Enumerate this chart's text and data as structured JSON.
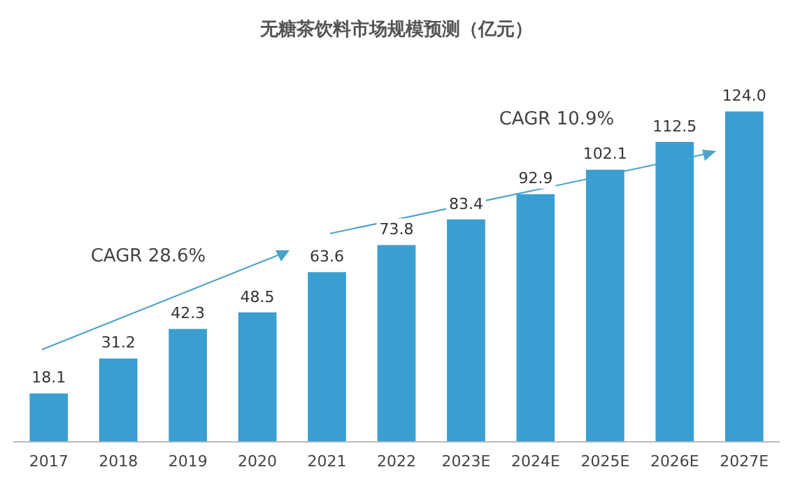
{
  "chart_data": {
    "type": "bar",
    "title": "无糖茶饮料市场规模预测（亿元）",
    "categories": [
      "2017",
      "2018",
      "2019",
      "2020",
      "2021",
      "2022",
      "2023E",
      "2024E",
      "2025E",
      "2026E",
      "2027E"
    ],
    "values": [
      18.1,
      31.2,
      42.3,
      48.5,
      63.6,
      73.8,
      83.4,
      92.9,
      102.1,
      112.5,
      124.0
    ],
    "value_labels": [
      "18.1",
      "31.2",
      "42.3",
      "48.5",
      "63.6",
      "73.8",
      "83.4",
      "92.9",
      "102.1",
      "112.5",
      "124.0"
    ],
    "color": "#3a9fd0",
    "annotations": [
      "CAGR 28.6%",
      "CAGR 10.9%"
    ],
    "grid": false,
    "legend": false
  }
}
